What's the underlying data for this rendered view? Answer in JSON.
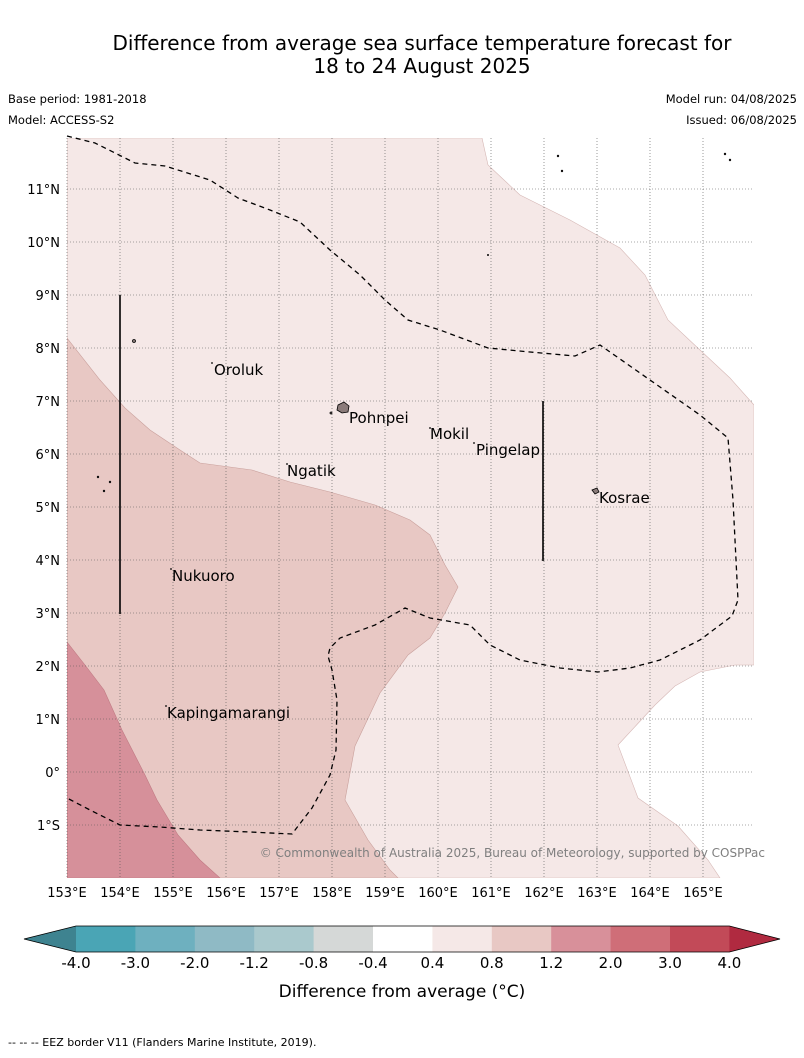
{
  "header": {
    "title_line1": "Difference from average sea surface temperature forecast for",
    "title_line2": "18 to 24 August 2025",
    "base_period": "Base period: 1981-2018",
    "model": "Model: ACCESS-S2",
    "model_run": "Model run: 04/08/2025",
    "issued": "Issued: 06/08/2025"
  },
  "map": {
    "lon_labels": [
      "153°E",
      "154°E",
      "155°E",
      "156°E",
      "157°E",
      "158°E",
      "159°E",
      "160°E",
      "161°E",
      "162°E",
      "163°E",
      "164°E",
      "165°E"
    ],
    "lat_labels": [
      "11°N",
      "10°N",
      "9°N",
      "8°N",
      "7°N",
      "6°N",
      "5°N",
      "4°N",
      "3°N",
      "2°N",
      "1°N",
      "0°",
      "1°S"
    ],
    "places": [
      {
        "name": "Oroluk"
      },
      {
        "name": "Pohnpei"
      },
      {
        "name": "Mokil"
      },
      {
        "name": "Pingelap"
      },
      {
        "name": "Ngatik"
      },
      {
        "name": "Kosrae"
      },
      {
        "name": "Nukuoro"
      },
      {
        "name": "Kapingamarangi"
      }
    ],
    "copyright": "© Commonwealth of Australia 2025, Bureau of Meteorology, supported by COSPPac"
  },
  "legend": {
    "title": "Difference from average (°C)",
    "ticks": [
      "-4.0",
      "-3.0",
      "-2.0",
      "-1.2",
      "-0.8",
      "-0.4",
      "0.4",
      "0.8",
      "1.2",
      "2.0",
      "3.0",
      "4.0"
    ],
    "colors": [
      "#3e8390",
      "#4aa5b5",
      "#6eb0bf",
      "#8fbac5",
      "#aac9cd",
      "#d5d8d7",
      "#ffffff",
      "#f5e8e7",
      "#e8c8c4",
      "#d8909a",
      "#cf6e78",
      "#c24a58",
      "#b02a40"
    ]
  },
  "footnote": "-- -- -- EEZ border V11 (Flanders Marine Institute, 2019)."
}
